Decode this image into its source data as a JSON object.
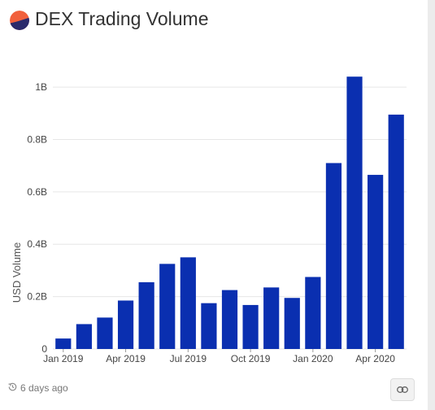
{
  "header": {
    "title": "DEX Trading Volume",
    "logo_icon": "dune-logo-icon"
  },
  "footer": {
    "time_ago": "6 days ago",
    "history_icon": "history-icon",
    "link_icon": "link-icon"
  },
  "chart_data": {
    "type": "bar",
    "title": "",
    "xlabel": "",
    "ylabel": "USD Volume",
    "color": "#0a2fb0",
    "ylim": [
      0,
      1050000000
    ],
    "grid": true,
    "legend": "none",
    "x": [
      "2019-01",
      "2019-02",
      "2019-03",
      "2019-04",
      "2019-05",
      "2019-06",
      "2019-07",
      "2019-08",
      "2019-09",
      "2019-10",
      "2019-11",
      "2019-12",
      "2020-01",
      "2020-02",
      "2020-03",
      "2020-04",
      "2020-05"
    ],
    "values": [
      40000000,
      95000000,
      120000000,
      185000000,
      255000000,
      325000000,
      350000000,
      175000000,
      225000000,
      168000000,
      235000000,
      195000000,
      275000000,
      710000000,
      1040000000,
      665000000,
      895000000
    ],
    "yticks": [
      {
        "value": 0,
        "label": "0"
      },
      {
        "value": 200000000,
        "label": "0.2B"
      },
      {
        "value": 400000000,
        "label": "0.4B"
      },
      {
        "value": 600000000,
        "label": "0.6B"
      },
      {
        "value": 800000000,
        "label": "0.8B"
      },
      {
        "value": 1000000000,
        "label": "1B"
      }
    ],
    "xticks": [
      {
        "index": 0,
        "label": "Jan 2019"
      },
      {
        "index": 3,
        "label": "Apr 2019"
      },
      {
        "index": 6,
        "label": "Jul 2019"
      },
      {
        "index": 9,
        "label": "Oct 2019"
      },
      {
        "index": 12,
        "label": "Jan 2020"
      },
      {
        "index": 15,
        "label": "Apr 2020"
      }
    ]
  }
}
